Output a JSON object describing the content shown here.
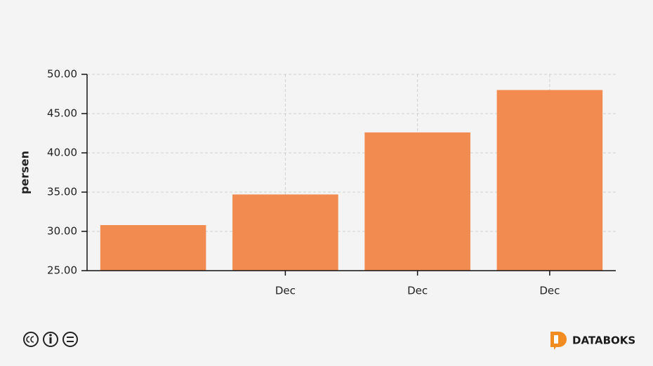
{
  "chart_data": {
    "type": "bar",
    "y_label": "persen",
    "categories": [
      null,
      "Dec",
      "Dec",
      "Dec"
    ],
    "values": [
      30.8,
      34.7,
      42.6,
      48.0
    ],
    "color": "#f28b50",
    "ylim": [
      25,
      50
    ],
    "yticks": [
      {
        "value": 25,
        "label": "25.00"
      },
      {
        "value": 30,
        "label": "30.00"
      },
      {
        "value": 35,
        "label": "35.00"
      },
      {
        "value": 40,
        "label": "40.00"
      },
      {
        "value": 45,
        "label": "45.00"
      },
      {
        "value": 50,
        "label": "50.00"
      }
    ],
    "grid": true
  },
  "footer": {
    "brand": "DATABOKS"
  }
}
